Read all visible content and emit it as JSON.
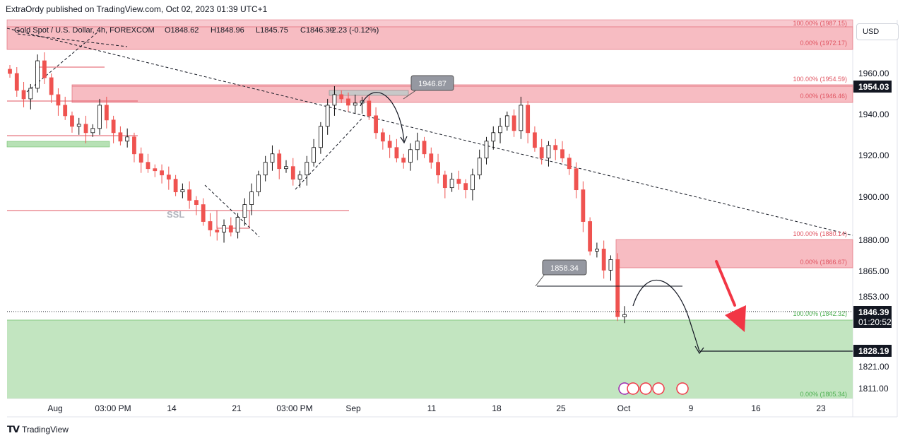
{
  "header": {
    "text": "ExtraOrdy published on TradingView.com, Oct 02, 2023 01:39 UTC+1"
  },
  "footer": {
    "brand": "TradingView",
    "logo": "tv-logo-icon"
  },
  "currency_button": {
    "label": "USD"
  },
  "symbol_line": "Gold Spot / U.S. Dollar, 4h, FOREXCOM",
  "ohlc": {
    "o": "O1848.62",
    "h": "H1848.96",
    "l": "L1845.75",
    "c": "C1846.39",
    "chg": "-2.23 (-0.12%)"
  },
  "colors": {
    "up": "#0e0e0e",
    "down": "#ef5350",
    "supply": "#f4a5ae",
    "demand": "#b7e1b5",
    "arrow": "#f23645"
  },
  "chart_data": {
    "type": "candlestick",
    "symbol": "XAUUSD",
    "timeframe": "4h",
    "y_ticks": [
      "1960.00",
      "1940.00",
      "1920.00",
      "1900.00",
      "1880.00",
      "1865.00",
      "1853.00",
      "1821.00",
      "1811.00"
    ],
    "x_ticks": [
      "Aug",
      "03:00 PM",
      "14",
      "21",
      "03:00 PM",
      "Sep",
      "11",
      "18",
      "25",
      "Oct",
      "9",
      "16",
      "23"
    ],
    "price_labels": [
      {
        "value": "1954.03",
        "style": "dark"
      },
      {
        "value": "1846.39",
        "sub": "01:20:52",
        "style": "dark"
      },
      {
        "value": "1828.19",
        "style": "dark"
      }
    ],
    "fib_labels": [
      "100.00% (1987.15)",
      "0.00% (1972.17)",
      "100.00% (1954.59)",
      "0.00% (1946.46)",
      "100.00% (1880.14)",
      "0.00% (1866.67)",
      "100.00% (1842.32)",
      "0.00% (1805.34)"
    ],
    "callouts": [
      "1946.87",
      "1858.34"
    ],
    "annotations": [
      "SSL"
    ],
    "series": [
      {
        "name": "close",
        "values": [
          1960,
          1952,
          1948,
          1953,
          1966,
          1958,
          1950,
          1945,
          1940,
          1935,
          1936,
          1932,
          1934,
          1945,
          1938,
          1932,
          1928,
          1930,
          1922,
          1918,
          1915,
          1914,
          1912,
          1910,
          1904,
          1905,
          1900,
          1898,
          1890,
          1886,
          1885,
          1888,
          1885,
          1892,
          1898,
          1904,
          1912,
          1918,
          1922,
          1915,
          1916,
          1910,
          1912,
          1918,
          1925,
          1935,
          1945,
          1950,
          1948,
          1945,
          1946,
          1947,
          1940,
          1932,
          1928,
          1925,
          1920,
          1918,
          1924,
          1928,
          1922,
          1918,
          1912,
          1906,
          1910,
          1908,
          1905,
          1912,
          1920,
          1928,
          1932,
          1935,
          1940,
          1933,
          1945,
          1932,
          1925,
          1920,
          1926,
          1924,
          1920,
          1915,
          1905,
          1890,
          1876,
          1877,
          1867,
          1872,
          1845,
          1846
        ]
      }
    ],
    "levels": {
      "target": 1828.19,
      "current": 1846.39,
      "swing_low": 1858.34,
      "swing_high": 1946.87
    }
  }
}
